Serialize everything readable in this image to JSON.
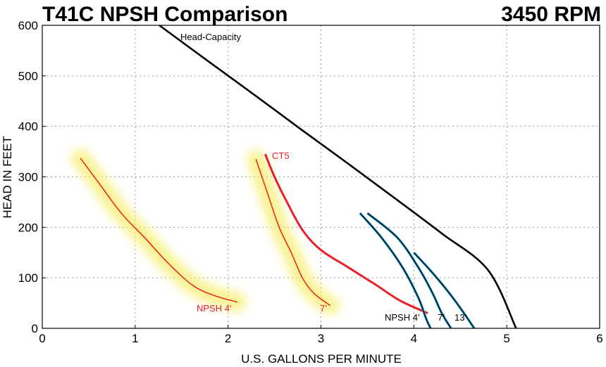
{
  "chart_data": {
    "type": "line",
    "title": "T41C NPSH Comparison",
    "subtitle": "3450 RPM",
    "xlabel": "U.S. GALLONS PER MINUTE",
    "ylabel": "HEAD IN FEET",
    "xlim": [
      0,
      6
    ],
    "ylim": [
      0,
      600
    ],
    "xticks": [
      "0",
      "1",
      "2",
      "3",
      "4",
      "5",
      "6"
    ],
    "yticks": [
      "0",
      "100",
      "200",
      "300",
      "400",
      "500",
      "600"
    ],
    "grid": true,
    "colors": {
      "black": "#000000",
      "red": "#e8202a",
      "glow": "#f7ee6a",
      "blue": "#2aa8d8"
    },
    "series": [
      {
        "name": "Head-Capacity",
        "style": "head",
        "x": [
          1.26,
          1.8,
          2.3,
          2.8,
          3.3,
          3.8,
          4.3,
          4.8,
          5.1
        ],
        "y": [
          600,
          527,
          460,
          392,
          325,
          257,
          188,
          115,
          0
        ]
      },
      {
        "name": "CT5",
        "style": "ct5",
        "x": [
          2.4,
          2.5,
          2.62,
          2.8,
          3.0,
          3.3,
          3.6,
          3.85,
          4.15
        ],
        "y": [
          345,
          300,
          255,
          195,
          155,
          120,
          85,
          55,
          30
        ]
      },
      {
        "name": "NPSH 4'",
        "style": "glow",
        "x": [
          0.41,
          0.6,
          0.85,
          1.1,
          1.35,
          1.62,
          1.85,
          2.1
        ],
        "y": [
          337,
          290,
          228,
          180,
          130,
          85,
          65,
          52
        ]
      },
      {
        "name": "7'",
        "style": "glow",
        "x": [
          2.3,
          2.42,
          2.55,
          2.68,
          2.8,
          2.92,
          3.1
        ],
        "y": [
          335,
          270,
          200,
          150,
          100,
          70,
          45
        ]
      },
      {
        "name": "NPSH 4'",
        "style": "blue",
        "x": [
          3.42,
          3.65,
          3.88,
          4.05,
          4.13,
          4.18
        ],
        "y": [
          228,
          180,
          120,
          60,
          20,
          0
        ]
      },
      {
        "name": "7'",
        "style": "blue",
        "x": [
          3.5,
          3.82,
          4.05,
          4.2,
          4.3,
          4.4
        ],
        "y": [
          228,
          180,
          120,
          70,
          30,
          0
        ]
      },
      {
        "name": "13'",
        "style": "blue",
        "x": [
          4.0,
          4.2,
          4.38,
          4.52,
          4.65
        ],
        "y": [
          150,
          110,
          70,
          35,
          0
        ]
      }
    ],
    "annotations": {
      "head_capacity": "Head-Capacity",
      "ct5": "CT5",
      "red_npsh_4": "NPSH 4’",
      "red_7": "7’",
      "black_npsh_4": "NPSH 4’",
      "black_7": "7’",
      "black_13": "13’"
    }
  }
}
